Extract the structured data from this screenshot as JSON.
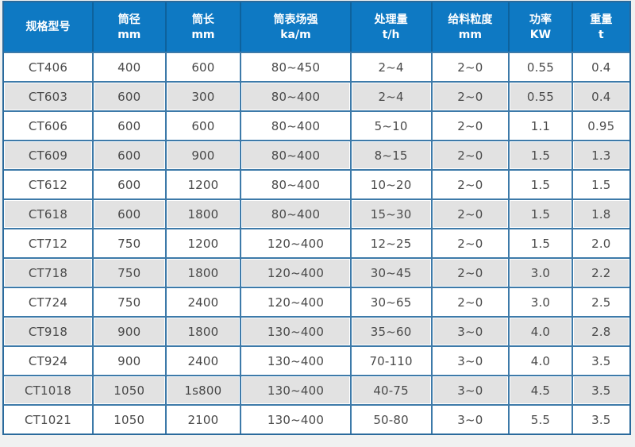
{
  "table": {
    "columns": [
      {
        "label": "规格型号",
        "unit": ""
      },
      {
        "label": "筒径",
        "unit": "mm"
      },
      {
        "label": "筒长",
        "unit": "mm"
      },
      {
        "label": "筒表场强",
        "unit": "ka/m"
      },
      {
        "label": "处理量",
        "unit": "t/h"
      },
      {
        "label": "给料粒度",
        "unit": "mm"
      },
      {
        "label": "功率",
        "unit": "KW"
      },
      {
        "label": "重量",
        "unit": "t"
      }
    ],
    "rows": [
      [
        "CT406",
        "400",
        "600",
        "80~450",
        "2~4",
        "2~0",
        "0.55",
        "0.4"
      ],
      [
        "CT603",
        "600",
        "300",
        "80~400",
        "2~4",
        "2~0",
        "0.55",
        "0.4"
      ],
      [
        "CT606",
        "600",
        "600",
        "80~400",
        "5~10",
        "2~0",
        "1.1",
        "0.95"
      ],
      [
        "CT609",
        "600",
        "900",
        "80~400",
        "8~15",
        "2~0",
        "1.5",
        "1.3"
      ],
      [
        "CT612",
        "600",
        "1200",
        "80~400",
        "10~20",
        "2~0",
        "1.5",
        "1.5"
      ],
      [
        "CT618",
        "600",
        "1800",
        "80~400",
        "15~30",
        "2~0",
        "1.5",
        "1.8"
      ],
      [
        "CT712",
        "750",
        "1200",
        "120~400",
        "12~25",
        "2~0",
        "1.5",
        "2.0"
      ],
      [
        "CT718",
        "750",
        "1800",
        "120~400",
        "30~45",
        "2~0",
        "3.0",
        "2.2"
      ],
      [
        "CT724",
        "750",
        "2400",
        "120~400",
        "30~65",
        "2~0",
        "3.0",
        "2.5"
      ],
      [
        "CT918",
        "900",
        "1800",
        "130~400",
        "35~60",
        "3~0",
        "4.0",
        "2.8"
      ],
      [
        "CT924",
        "900",
        "2400",
        "130~400",
        "70-110",
        "3~0",
        "4.0",
        "3.5"
      ],
      [
        "CT1018",
        "1050",
        "1s800",
        "130~400",
        "40-75",
        "3~0",
        "4.5",
        "3.5"
      ],
      [
        "CT1021",
        "1050",
        "2100",
        "130~400",
        "50-80",
        "3~0",
        "5.5",
        "3.5"
      ]
    ]
  },
  "colors": {
    "header_blue": "#0e79c3",
    "header_separator_blue": "#0d629d",
    "outer_border_blue": "#2a6a9c",
    "cell_border_blue": "#3d7aa9",
    "alt_row_gray": "#e2e2e2",
    "data_text": "#4a4a4a",
    "header_text": "#ffffff",
    "page_background": "#f0f1f1"
  }
}
